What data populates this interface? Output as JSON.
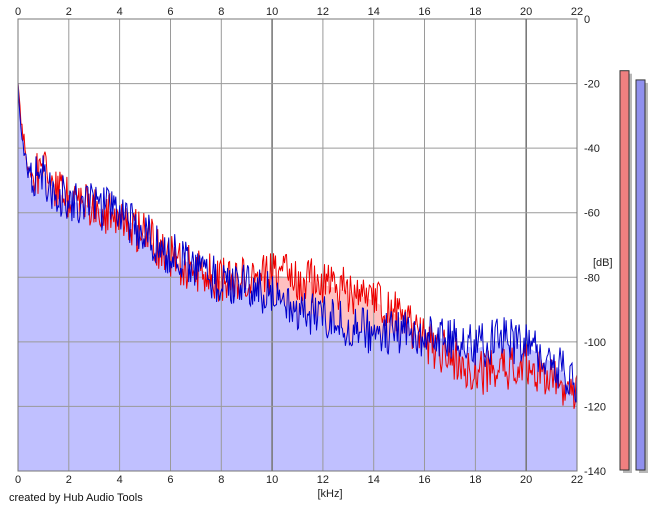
{
  "footer": {
    "credit": "created by Hub Audio Tools"
  },
  "colors": {
    "background": "#ffffff",
    "grid": "#9a9a9a",
    "fill": "#c0c0ff",
    "fill_red": "#ffc0c0",
    "series_blue": "#0000cc",
    "series_red": "#ee0000",
    "meter_left": "#f08080",
    "meter_right": "#9090ee"
  },
  "chart_data": {
    "type": "line",
    "title": "",
    "xlabel": "[kHz]",
    "ylabel": "[dB]",
    "xlim": [
      0,
      22
    ],
    "ylim": [
      -140,
      0
    ],
    "x_ticks": [
      0,
      2,
      4,
      6,
      8,
      10,
      12,
      14,
      16,
      18,
      20,
      22
    ],
    "y_ticks": [
      0,
      -20,
      -40,
      -60,
      -80,
      -100,
      -120,
      -140
    ],
    "x_tick_labels": [
      "0",
      "2",
      "4",
      "6",
      "8",
      "10",
      "12",
      "14",
      "16",
      "18",
      "20",
      "22"
    ],
    "y_tick_labels": [
      "0",
      "-20",
      "-40",
      "-60",
      "-80",
      "-100",
      "-120",
      "-140"
    ],
    "grid": true,
    "x_axis_positions": [
      "top",
      "bottom"
    ],
    "series": [
      {
        "color": "#ee0000",
        "x": [
          0,
          0.1,
          0.3,
          0.5,
          1,
          1.5,
          2,
          3,
          4,
          5,
          6,
          7,
          8,
          9,
          10,
          11,
          12,
          13,
          14,
          15,
          16,
          17,
          18,
          19,
          20,
          21,
          22
        ],
        "y": [
          -20,
          -30,
          -42,
          -50,
          -47,
          -53,
          -56,
          -58,
          -62,
          -67,
          -74,
          -78,
          -81,
          -80,
          -79,
          -80,
          -82,
          -84,
          -87,
          -92,
          -100,
          -104,
          -110,
          -109,
          -106,
          -112,
          -116
        ]
      },
      {
        "color": "#0000cc",
        "x": [
          0,
          0.1,
          0.3,
          0.5,
          1,
          1.5,
          2,
          3,
          4,
          5,
          6,
          7,
          8,
          9,
          10,
          11,
          12,
          13,
          14,
          15,
          16,
          17,
          18,
          19,
          20,
          21,
          22
        ],
        "y": [
          -22,
          -32,
          -44,
          -50,
          -48,
          -54,
          -56,
          -58,
          -60,
          -66,
          -73,
          -76,
          -82,
          -83,
          -85,
          -90,
          -92,
          -95,
          -97,
          -97,
          -98,
          -99,
          -102,
          -99,
          -101,
          -106,
          -113
        ]
      }
    ],
    "meters": {
      "left": -10,
      "right": -13
    }
  }
}
